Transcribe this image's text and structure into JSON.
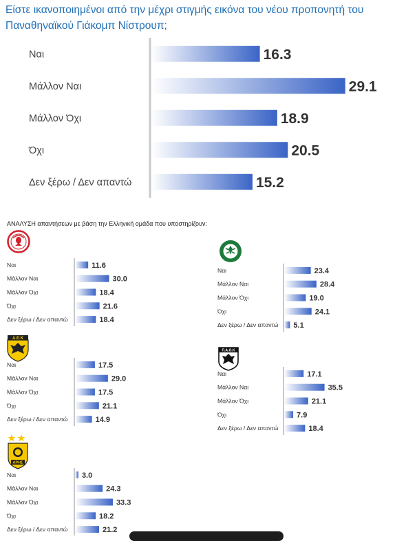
{
  "title": "Είστε ικανοποιημένοι από την μέχρι στιγμής εικόνα του νέου προπονητή του Παναθηναϊκού Γιάκομπ Νίστρουπ;",
  "subtitle": "ΑΝΑΛΥΣΗ απαντήσεων με βάση την Ελληνική ομάδα που υποστηρίζουν:",
  "colors": {
    "title": "#1f6fb6",
    "bar_dark": "#3a64c6",
    "bar_light": "#ffffff",
    "axis": "#c9c9c9"
  },
  "logos": {
    "olympiacos": "olympiacos-crest-icon",
    "panathinaikos": "panathinaikos-crest-icon",
    "aek": "aek-crest-icon",
    "paok": "paok-crest-icon",
    "aris": "aris-crest-icon"
  },
  "logo_text": {
    "aek": "Α.Ε.Κ",
    "paok": "Π.Α.Ο.Κ",
    "aris": "ΑΡΗΣ"
  },
  "chart_data": [
    {
      "type": "bar",
      "orientation": "horizontal",
      "categories": [
        "Ναι",
        "Μάλλον  Ναι",
        "Μάλλον Όχι",
        "Όχι",
        "Δεν ξέρω / Δεν απαντώ"
      ],
      "values": [
        16.3,
        29.1,
        18.9,
        20.5,
        15.2
      ]
    },
    {
      "type": "bar",
      "orientation": "horizontal",
      "team": "olympiacos",
      "categories": [
        "Ναι",
        "Μάλλον  Ναι",
        "Μάλλον Όχι",
        "Όχι",
        "Δεν ξέρω / Δεν απαντώ"
      ],
      "values": [
        11.6,
        30.0,
        18.4,
        21.6,
        18.4
      ]
    },
    {
      "type": "bar",
      "orientation": "horizontal",
      "team": "panathinaikos",
      "categories": [
        "Ναι",
        "Μάλλον  Ναι",
        "Μάλλον Όχι",
        "Όχι",
        "Δεν ξέρω / Δεν απαντώ"
      ],
      "values": [
        23.4,
        28.4,
        19.0,
        24.1,
        5.1
      ]
    },
    {
      "type": "bar",
      "orientation": "horizontal",
      "team": "aek",
      "categories": [
        "Ναι",
        "Μάλλον  Ναι",
        "Μάλλον Όχι",
        "Όχι",
        "Δεν ξέρω / Δεν απαντώ"
      ],
      "values": [
        17.5,
        29.0,
        17.5,
        21.1,
        14.9
      ]
    },
    {
      "type": "bar",
      "orientation": "horizontal",
      "team": "paok",
      "categories": [
        "Ναι",
        "Μάλλον  Ναι",
        "Μάλλον Όχι",
        "Όχι",
        "Δεν ξέρω / Δεν απαντώ"
      ],
      "values": [
        17.1,
        35.5,
        21.1,
        7.9,
        18.4
      ]
    },
    {
      "type": "bar",
      "orientation": "horizontal",
      "team": "aris",
      "categories": [
        "Ναι",
        "Μάλλον  Ναι",
        "Μάλλον Όχι",
        "Όχι",
        "Δεν ξέρω / Δεν απαντώ"
      ],
      "values": [
        3.0,
        24.3,
        33.3,
        18.2,
        21.2
      ]
    }
  ]
}
